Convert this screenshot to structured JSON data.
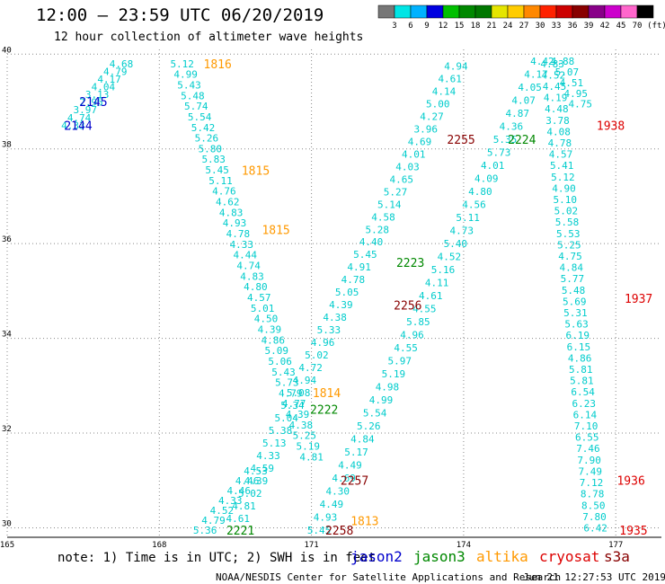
{
  "header": {
    "title": "12:00 – 23:59 UTC 06/20/2019",
    "subtitle": "12 hour collection of altimeter wave heights"
  },
  "colorbar": {
    "labels": [
      "3",
      "6",
      "9",
      "12",
      "15",
      "18",
      "21",
      "24",
      "27",
      "30",
      "33",
      "36",
      "39",
      "42",
      "45",
      "70",
      "(ft)"
    ],
    "colors": [
      "#777777",
      "#00e5e5",
      "#00b2ff",
      "#0000e0",
      "#00c000",
      "#008800",
      "#007700",
      "#e5e500",
      "#ffcc00",
      "#ff8800",
      "#ff2200",
      "#cc0000",
      "#880000",
      "#880088",
      "#cc00cc",
      "#ff66cc",
      "#000000"
    ]
  },
  "footer": {
    "note": "note:  1) Time is in UTC;  2) SWH is in feet",
    "credit": "NOAA/NESDIS Center for Satellite Applications and Research",
    "timestamp": "Jun 21 12:27:53 UTC 2019"
  },
  "legend": [
    {
      "name": "jason2",
      "color": "#0000cc"
    },
    {
      "name": "jason3",
      "color": "#008800"
    },
    {
      "name": "altika",
      "color": "#ff9900"
    },
    {
      "name": "cryosat",
      "color": "#dd0000"
    },
    {
      "name": "s3a",
      "color": "#880000"
    }
  ],
  "chart_data": {
    "type": "scatter",
    "x_ticks": [
      "165",
      "168",
      "171",
      "174",
      "177"
    ],
    "y_ticks": [
      "40",
      "38",
      "36",
      "34",
      "32",
      "30"
    ],
    "xlim": [
      165,
      177.9
    ],
    "ylim": [
      29.8,
      40.1
    ],
    "grid": true,
    "value_color": "#00cccc",
    "track_labels": [
      {
        "text": "2145",
        "x": 166.7,
        "y": 39.0,
        "color": "#0000cc"
      },
      {
        "text": "2144",
        "x": 166.4,
        "y": 38.5,
        "color": "#0000cc"
      },
      {
        "text": "1816",
        "x": 169.15,
        "y": 39.8,
        "color": "#ff9900"
      },
      {
        "text": "1815",
        "x": 169.9,
        "y": 37.55,
        "color": "#ff9900"
      },
      {
        "text": "1815",
        "x": 170.3,
        "y": 36.3,
        "color": "#ff9900"
      },
      {
        "text": "1814",
        "x": 171.3,
        "y": 32.85,
        "color": "#ff9900"
      },
      {
        "text": "1813",
        "x": 172.05,
        "y": 30.15,
        "color": "#ff9900"
      },
      {
        "text": "2255",
        "x": 173.95,
        "y": 38.2,
        "color": "#880000"
      },
      {
        "text": "2256",
        "x": 172.9,
        "y": 34.7,
        "color": "#880000"
      },
      {
        "text": "2257",
        "x": 171.85,
        "y": 31.0,
        "color": "#880000"
      },
      {
        "text": "2258",
        "x": 171.55,
        "y": 29.95,
        "color": "#880000"
      },
      {
        "text": "2224",
        "x": 175.15,
        "y": 38.2,
        "color": "#008800"
      },
      {
        "text": "2223",
        "x": 172.95,
        "y": 35.6,
        "color": "#008800"
      },
      {
        "text": "2222",
        "x": 171.25,
        "y": 32.5,
        "color": "#008800"
      },
      {
        "text": "2221",
        "x": 169.6,
        "y": 29.95,
        "color": "#008800"
      },
      {
        "text": "1938",
        "x": 176.9,
        "y": 38.5,
        "color": "#dd0000"
      },
      {
        "text": "1937",
        "x": 177.45,
        "y": 34.85,
        "color": "#dd0000"
      },
      {
        "text": "1936",
        "x": 177.3,
        "y": 31.0,
        "color": "#dd0000"
      },
      {
        "text": "1935",
        "x": 177.35,
        "y": 29.95,
        "color": "#dd0000"
      }
    ],
    "tracks": [
      {
        "name": "track-a",
        "x0": 166.3,
        "y0": 38.5,
        "x1": 167.25,
        "y1": 39.8,
        "values": [
          "4.33",
          "4.74",
          "3.97",
          "2.95",
          "3.13",
          "4.04",
          "4.17",
          "4.79",
          "4.68"
        ]
      },
      {
        "name": "track-b",
        "x0": 168.45,
        "y0": 39.8,
        "x1": 171.0,
        "y1": 31.5,
        "values": [
          "5.12",
          "4.99",
          "5.43",
          "5.48",
          "5.74",
          "5.54",
          "5.42",
          "5.26",
          "5.80",
          "5.83",
          "5.45",
          "5.11",
          "4.76",
          "4.62",
          "4.83",
          "4.93",
          "4.78",
          "4.33",
          "4.44",
          "4.74",
          "4.83",
          "4.80",
          "4.57",
          "5.01",
          "4.50",
          "4.39",
          "4.86",
          "5.09",
          "5.06",
          "5.43",
          "5.73",
          "4.79",
          "4.77",
          "4.39",
          "4.38",
          "5.25",
          "5.19",
          "4.81"
        ]
      },
      {
        "name": "track-c",
        "x0": 169.9,
        "y0": 31.2,
        "x1": 168.9,
        "y1": 29.95,
        "values": [
          "4.53",
          "4.46",
          "4.46",
          "4.33",
          "4.52",
          "4.79",
          "5.36"
        ]
      },
      {
        "name": "track-d",
        "x0": 173.85,
        "y0": 39.75,
        "x1": 169.55,
        "y1": 30.2,
        "values": [
          "4.94",
          "4.61",
          "4.14",
          "5.00",
          "4.27",
          "3.96",
          "4.69",
          "4.01",
          "4.03",
          "4.65",
          "5.27",
          "5.14",
          "4.58",
          "5.28",
          "4.40",
          "5.45",
          "4.91",
          "4.78",
          "5.05",
          "4.39",
          "4.38",
          "5.33",
          "4.96",
          "5.02",
          "4.72",
          "4.94",
          "5.08",
          "5.34",
          "5.04",
          "5.38",
          "5.13",
          "4.33",
          "4.59",
          "4.39",
          "5.02",
          "4.81",
          "4.61"
        ]
      },
      {
        "name": "track-e",
        "x0": 175.55,
        "y0": 39.85,
        "x1": 171.15,
        "y1": 29.95,
        "values": [
          "4.42",
          "4.17",
          "4.05",
          "4.07",
          "4.87",
          "4.36",
          "5.35",
          "5.73",
          "4.01",
          "4.09",
          "4.80",
          "4.56",
          "5.11",
          "4.73",
          "5.40",
          "4.52",
          "5.16",
          "4.11",
          "4.61",
          "4.55",
          "5.85",
          "4.96",
          "4.55",
          "5.97",
          "5.19",
          "4.98",
          "4.99",
          "5.54",
          "5.26",
          "4.84",
          "5.17",
          "4.49",
          "4.69",
          "4.30",
          "4.49",
          "4.93",
          "5.45"
        ]
      },
      {
        "name": "track-f",
        "x0": 175.75,
        "y0": 39.8,
        "x1": 176.6,
        "y1": 30.0,
        "values": [
          "4.83",
          "4.52",
          "4.45",
          "4.19",
          "4.48",
          "3.78",
          "4.08",
          "4.78",
          "4.57",
          "5.41",
          "5.12",
          "4.90",
          "5.10",
          "5.02",
          "5.58",
          "5.53",
          "5.25",
          "4.75",
          "4.84",
          "5.77",
          "5.48",
          "5.69",
          "5.31",
          "5.63",
          "6.19",
          "6.15",
          "4.86",
          "5.81",
          "5.81",
          "6.54",
          "6.23",
          "6.14",
          "7.10",
          "6.55",
          "7.46",
          "7.90",
          "7.49",
          "7.12",
          "8.78",
          "8.50",
          "7.80",
          "6.42"
        ]
      },
      {
        "name": "track-g",
        "x0": 175.95,
        "y0": 39.85,
        "x1": 176.3,
        "y1": 38.95,
        "values": [
          "4.88",
          "5.07",
          "4.51",
          "4.95",
          "4.75"
        ]
      }
    ]
  }
}
